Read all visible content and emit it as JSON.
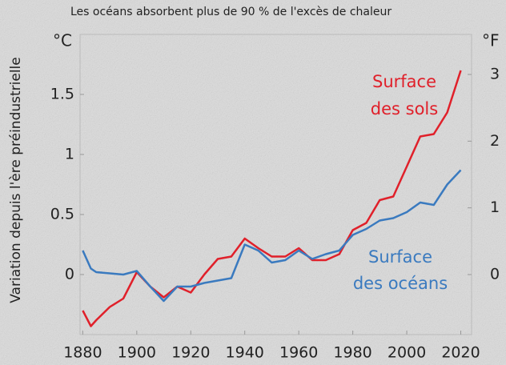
{
  "chart_data": {
    "type": "line",
    "title": "Les océans absorbent plus de 90 % de l'excès de chaleur",
    "y_label": "Variation depuis l'ère préindustrielle",
    "y_unit": "°C",
    "y2_unit": "°F",
    "annotations": [
      [
        "Surface",
        "des sols"
      ],
      [
        "Surface",
        "des océans"
      ]
    ],
    "x": [
      1880,
      1883,
      1885,
      1890,
      1895,
      1900,
      1905,
      1910,
      1915,
      1920,
      1925,
      1930,
      1935,
      1940,
      1945,
      1950,
      1955,
      1960,
      1965,
      1970,
      1975,
      1980,
      1985,
      1990,
      1995,
      2000,
      2005,
      2010,
      2015,
      2020
    ],
    "series": [
      {
        "name": "Surface des sols",
        "color": "#e0202a",
        "values": [
          -0.3,
          -0.43,
          -0.38,
          -0.27,
          -0.2,
          0.02,
          -0.1,
          -0.19,
          -0.1,
          -0.15,
          0.0,
          0.13,
          0.15,
          0.3,
          0.22,
          0.15,
          0.15,
          0.22,
          0.12,
          0.12,
          0.17,
          0.37,
          0.43,
          0.62,
          0.65,
          0.9,
          1.15,
          1.17,
          1.35,
          1.7
        ]
      },
      {
        "name": "Surface des océans",
        "color": "#3a7abf",
        "values": [
          0.2,
          0.05,
          0.02,
          0.01,
          0.0,
          0.03,
          -0.1,
          -0.22,
          -0.1,
          -0.1,
          -0.07,
          -0.05,
          -0.03,
          0.25,
          0.2,
          0.1,
          0.12,
          0.2,
          0.13,
          0.17,
          0.2,
          0.33,
          0.38,
          0.45,
          0.47,
          0.52,
          0.6,
          0.58,
          0.75,
          0.87
        ]
      }
    ],
    "xlim": [
      1879,
      2024
    ],
    "xticks": [
      1880,
      1900,
      1920,
      1940,
      1960,
      1980,
      2000,
      2020
    ],
    "ylim": [
      -0.5,
      2
    ],
    "yticks": [
      0,
      0.5,
      1,
      1.5
    ],
    "y2lim": [
      -0.9,
      3.6
    ],
    "y2ticks": [
      0,
      1,
      2,
      3
    ],
    "grid": false
  }
}
